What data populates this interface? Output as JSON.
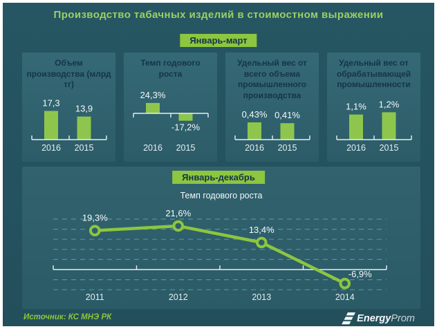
{
  "title": "Производство табачных изделий в стоимостном выражении",
  "period_badges": {
    "top": "Январь-март",
    "bottom": "Январь-декабрь"
  },
  "colors": {
    "background": "#265663",
    "panel": "#2f616d",
    "accent_green": "#8dc63f",
    "bar_green": "#8ec64d",
    "title_green": "#9bd063",
    "dark_text": "#14344a",
    "light_text": "#f5f9fa",
    "grid": "#4e93a6"
  },
  "chart_data": [
    {
      "type": "bar",
      "title": "Объем производства (млрд тг)",
      "categories": [
        "2016",
        "2015"
      ],
      "values": [
        17.3,
        13.9
      ],
      "value_labels": [
        "17,3",
        "13,9"
      ],
      "ylabel": "млрд тг"
    },
    {
      "type": "bar",
      "title": "Темп годового роста",
      "categories": [
        "2016",
        "2015"
      ],
      "values": [
        24.3,
        -17.2
      ],
      "value_labels": [
        "24,3%",
        "-17,2%"
      ],
      "ylabel": "%"
    },
    {
      "type": "bar",
      "title": "Удельный вес от всего объема промышленного производства",
      "categories": [
        "2016",
        "2015"
      ],
      "values": [
        0.43,
        0.41
      ],
      "value_labels": [
        "0,43%",
        "0,41%"
      ],
      "ylabel": "%"
    },
    {
      "type": "bar",
      "title": "Удельный вес от обрабатывающей промышленности",
      "categories": [
        "2016",
        "2015"
      ],
      "values": [
        1.1,
        1.2
      ],
      "value_labels": [
        "1,1%",
        "1,2%"
      ],
      "ylabel": "%"
    },
    {
      "type": "line",
      "title": "Темп годового роста",
      "categories": [
        "2011",
        "2012",
        "2013",
        "2014"
      ],
      "values": [
        19.3,
        21.6,
        13.4,
        -6.9
      ],
      "value_labels": [
        "19,3%",
        "21,6%",
        "13,4%",
        "-6,9%"
      ],
      "ylabel": "%",
      "ylim": [
        -10,
        25
      ],
      "grid": "horizontal dashed, 5% steps",
      "legend": "none"
    }
  ],
  "footer": {
    "source": "Источник: КС МНЭ РК",
    "logo_bold": "Energy",
    "logo_light": "Prom"
  }
}
